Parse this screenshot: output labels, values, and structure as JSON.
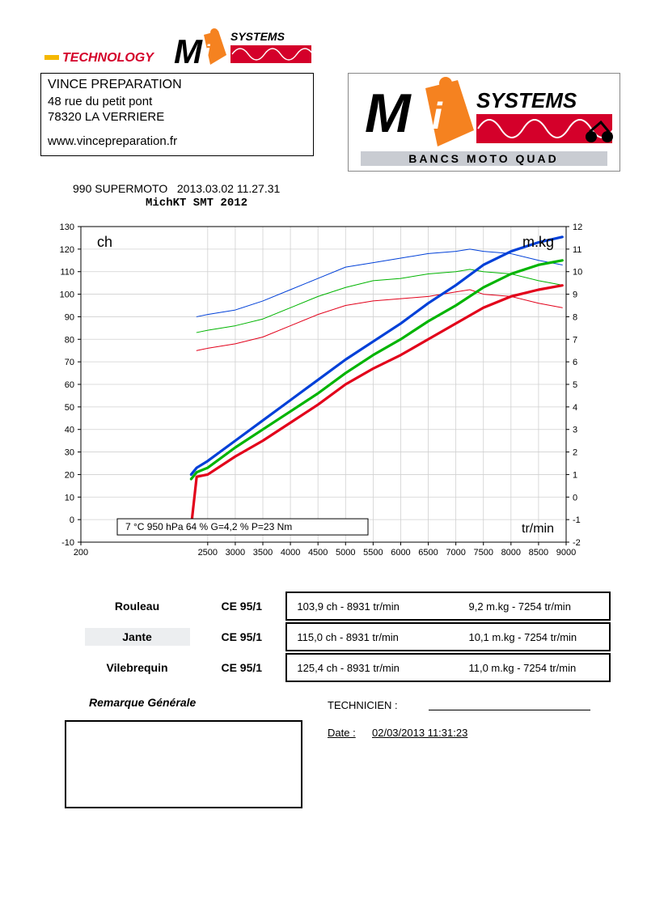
{
  "header": {
    "tech_word": "TECHNOLOGY",
    "logo_main": "Mi",
    "logo_sub": "SYSTEMS",
    "tagline": "BANCS MOTO QUAD",
    "accent_orange": "#f58220",
    "accent_yellow": "#f5b800",
    "accent_red": "#d4002a"
  },
  "address": {
    "name": "VINCE PREPARATION",
    "line1": "48 rue du petit pont",
    "line2": "78320 LA VERRIERE",
    "url": "www.vincepreparation.fr"
  },
  "test": {
    "line1": "990 SUPERMOTO   2013.03.02 11.27.31",
    "line2": "MichKT SMT 2012"
  },
  "chart": {
    "left_label": "ch",
    "right_label": "m.kg",
    "x_label": "tr/min",
    "conditions": "7 °C   950 hPa   64 %   G=4,2 %   P=23 Nm",
    "xlim": [
      200,
      9000
    ],
    "x_ticks": [
      200,
      2500,
      3000,
      3500,
      4000,
      4500,
      5000,
      5500,
      6000,
      6500,
      7000,
      7500,
      8000,
      8500,
      9000
    ],
    "y_left_lim": [
      -10,
      130
    ],
    "y_left_ticks": [
      -10,
      0,
      10,
      20,
      30,
      40,
      50,
      60,
      70,
      80,
      90,
      100,
      110,
      120,
      130
    ],
    "y_right_lim": [
      -2,
      12
    ],
    "y_right_ticks": [
      -2,
      -1,
      0,
      1,
      2,
      3,
      4,
      5,
      6,
      7,
      8,
      9,
      10,
      11,
      12
    ],
    "grid_color": "#d0d0d0",
    "axis_color": "#000000",
    "bg": "#ffffff",
    "label_fontsize": 14,
    "tick_fontsize": 11,
    "series": {
      "hp_red": {
        "color": "#e2001a",
        "width": 3.2,
        "x": [
          2200,
          2300,
          2500,
          3000,
          3500,
          4000,
          4500,
          5000,
          5500,
          6000,
          6500,
          7000,
          7500,
          8000,
          8500,
          8931
        ],
        "y": [
          -3,
          19,
          20,
          28,
          35,
          43,
          51,
          60,
          67,
          73,
          80,
          87,
          94,
          99,
          102,
          103.9
        ]
      },
      "hp_green": {
        "color": "#00b400",
        "width": 3.2,
        "x": [
          2200,
          2300,
          2500,
          3000,
          3500,
          4000,
          4500,
          5000,
          5500,
          6000,
          6500,
          7000,
          7500,
          8000,
          8500,
          8931
        ],
        "y": [
          18,
          21,
          23,
          32,
          40,
          48,
          56,
          65,
          73,
          80,
          88,
          95,
          103,
          109,
          113,
          115.0
        ]
      },
      "hp_blue": {
        "color": "#0040d8",
        "width": 3.2,
        "x": [
          2200,
          2300,
          2500,
          3000,
          3500,
          4000,
          4500,
          5000,
          5500,
          6000,
          6500,
          7000,
          7500,
          8000,
          8500,
          8931
        ],
        "y": [
          20,
          23,
          26,
          35,
          44,
          53,
          62,
          71,
          79,
          87,
          96,
          104,
          113,
          119,
          123,
          125.4
        ]
      },
      "tq_red": {
        "color": "#e2001a",
        "width": 1.0,
        "axis": "right",
        "x": [
          2300,
          2500,
          3000,
          3500,
          4000,
          4500,
          5000,
          5500,
          6000,
          6500,
          7000,
          7254,
          7500,
          8000,
          8500,
          8931
        ],
        "y": [
          6.5,
          6.6,
          6.8,
          7.1,
          7.6,
          8.1,
          8.5,
          8.7,
          8.8,
          8.9,
          9.1,
          9.2,
          9.0,
          8.9,
          8.6,
          8.4
        ]
      },
      "tq_green": {
        "color": "#00b400",
        "width": 1.0,
        "axis": "right",
        "x": [
          2300,
          2500,
          3000,
          3500,
          4000,
          4500,
          5000,
          5500,
          6000,
          6500,
          7000,
          7254,
          7500,
          8000,
          8500,
          8931
        ],
        "y": [
          7.3,
          7.4,
          7.6,
          7.9,
          8.4,
          8.9,
          9.3,
          9.6,
          9.7,
          9.9,
          10.0,
          10.1,
          10.0,
          9.9,
          9.6,
          9.4
        ]
      },
      "tq_blue": {
        "color": "#0040d8",
        "width": 1.0,
        "axis": "right",
        "x": [
          2300,
          2500,
          3000,
          3500,
          4000,
          4500,
          5000,
          5500,
          6000,
          6500,
          7000,
          7254,
          7500,
          8000,
          8500,
          8931
        ],
        "y": [
          8.0,
          8.1,
          8.3,
          8.7,
          9.2,
          9.7,
          10.2,
          10.4,
          10.6,
          10.8,
          10.9,
          11.0,
          10.9,
          10.8,
          10.5,
          10.3
        ]
      }
    }
  },
  "results": {
    "code": "CE 95/1",
    "rows": [
      {
        "label": "Rouleau",
        "hp": "103,9 ch - 8931 tr/min",
        "tq": "9,2 m.kg - 7254 tr/min"
      },
      {
        "label": "Jante",
        "hp": "115,0 ch - 8931 tr/min",
        "tq": "10,1 m.kg - 7254 tr/min"
      },
      {
        "label": "Vilebrequin",
        "hp": "125,4 ch - 8931 tr/min",
        "tq": "11,0 m.kg - 7254 tr/min"
      }
    ]
  },
  "footer": {
    "remarque": "Remarque Générale",
    "technicien": "TECHNICIEN :",
    "date_label": "Date :",
    "date_value": "02/03/2013 11:31:23"
  }
}
